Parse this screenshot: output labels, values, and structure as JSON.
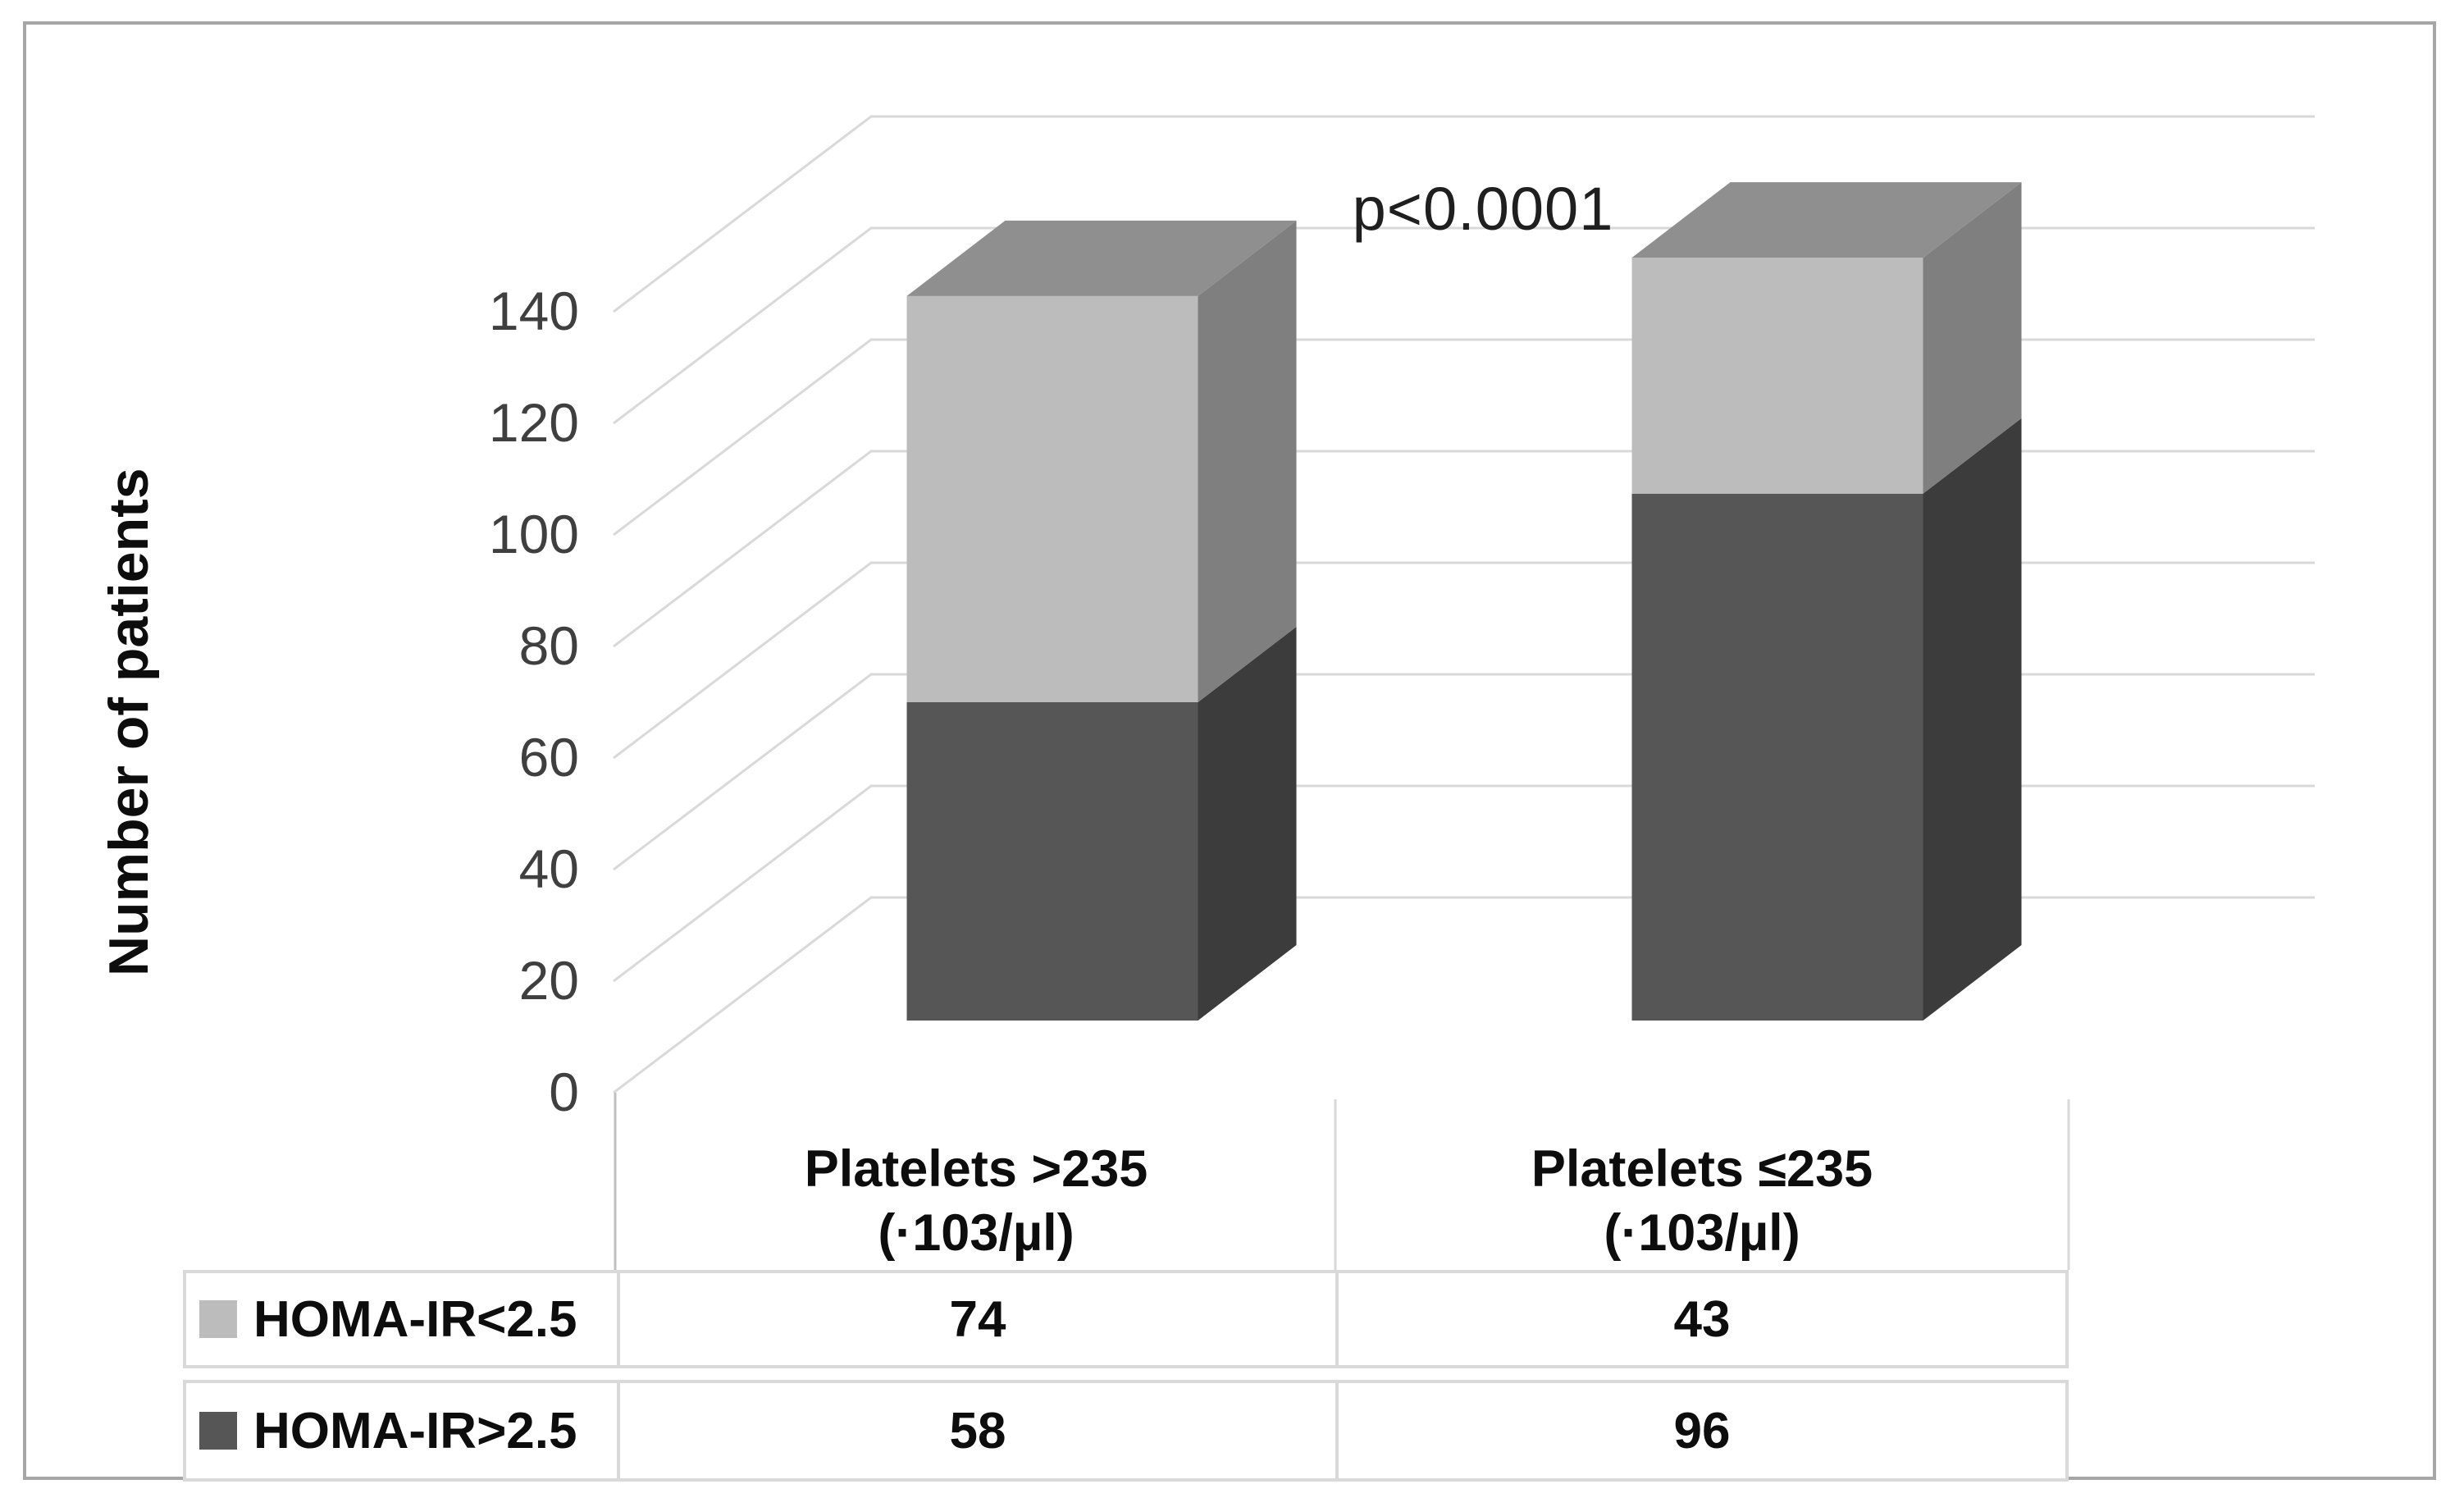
{
  "figure": {
    "description": "3D stacked column chart with data table"
  },
  "chart_data": {
    "type": "bar",
    "subtype": "3d-stacked-column",
    "title": "",
    "xlabel": "",
    "ylabel": "Number of patients",
    "ylim": [
      0,
      140
    ],
    "yticks": [
      0,
      20,
      40,
      60,
      80,
      100,
      120,
      140
    ],
    "grid": true,
    "annotation": "p<0.0001",
    "categories": [
      {
        "line1": "Platelets >235",
        "line2": "(·103/µl)"
      },
      {
        "line1": "Platelets ≤235",
        "line2": "(·103/µl)"
      }
    ],
    "series": [
      {
        "name": "HOMA-IR<2.5",
        "color": "#bcbcbc",
        "values": [
          74,
          43
        ]
      },
      {
        "name": "HOMA-IR>2.5",
        "color": "#565656",
        "values": [
          58,
          96
        ]
      }
    ],
    "stack_bottom_to_top": [
      "HOMA-IR>2.5",
      "HOMA-IR<2.5"
    ],
    "legend_position": "data-table-left-column"
  },
  "colors": {
    "grid": "#d9d9d9",
    "axis": "#bfbfbf",
    "table_border": "#d9d9d9",
    "tick_text": "#3f3f3f",
    "frame_border": "#a6a6a6",
    "light_side": "#7f7f7f",
    "light_top": "#8f8f8f",
    "dark_side": "#3c3c3c"
  }
}
